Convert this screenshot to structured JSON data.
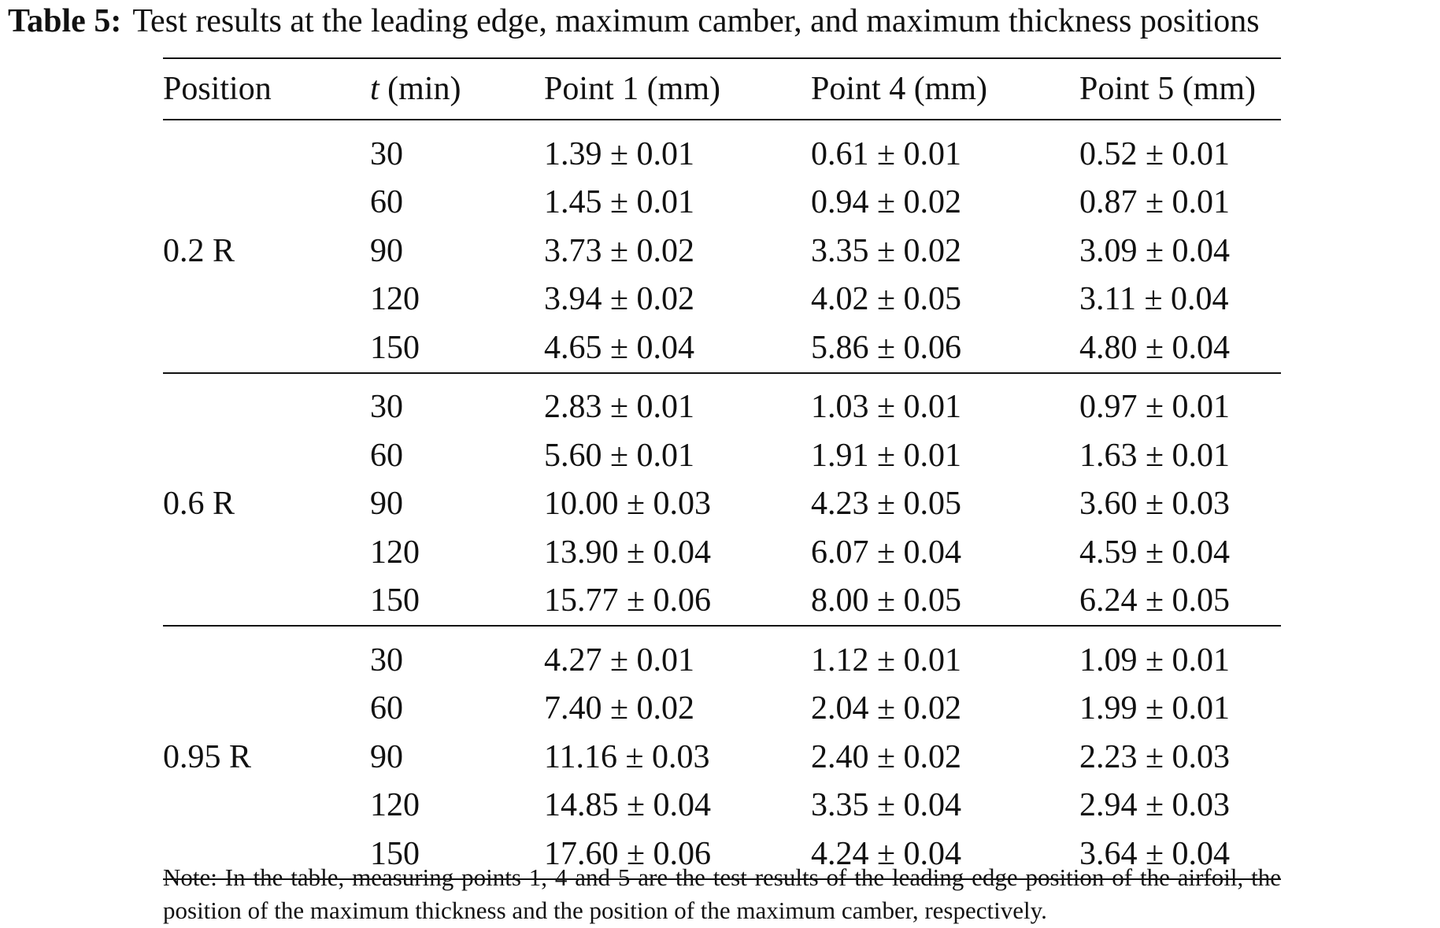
{
  "caption": {
    "label": "Table 5:",
    "text": "Test results at the leading edge, maximum camber, and maximum thickness positions"
  },
  "table": {
    "headers": {
      "position": "Position",
      "t_symbol": "t",
      "t_unit": "(min)",
      "point1": "Point 1 (mm)",
      "point4": "Point 4 (mm)",
      "point5": "Point 5 (mm)"
    },
    "groups": [
      {
        "position": "0.2 R",
        "rows": [
          {
            "t": "30",
            "p1": "1.39 ± 0.01",
            "p4": "0.61 ± 0.01",
            "p5": "0.52 ± 0.01"
          },
          {
            "t": "60",
            "p1": "1.45 ± 0.01",
            "p4": "0.94 ± 0.02",
            "p5": "0.87 ± 0.01"
          },
          {
            "t": "90",
            "p1": "3.73 ± 0.02",
            "p4": "3.35 ± 0.02",
            "p5": "3.09 ± 0.04"
          },
          {
            "t": "120",
            "p1": "3.94 ± 0.02",
            "p4": "4.02 ± 0.05",
            "p5": "3.11 ± 0.04"
          },
          {
            "t": "150",
            "p1": "4.65 ± 0.04",
            "p4": "5.86 ± 0.06",
            "p5": "4.80 ± 0.04"
          }
        ]
      },
      {
        "position": "0.6 R",
        "rows": [
          {
            "t": "30",
            "p1": "2.83 ± 0.01",
            "p4": "1.03 ± 0.01",
            "p5": "0.97 ± 0.01"
          },
          {
            "t": "60",
            "p1": "5.60 ± 0.01",
            "p4": "1.91 ± 0.01",
            "p5": "1.63 ± 0.01"
          },
          {
            "t": "90",
            "p1": "10.00 ± 0.03",
            "p4": "4.23 ± 0.05",
            "p5": "3.60 ± 0.03"
          },
          {
            "t": "120",
            "p1": "13.90 ± 0.04",
            "p4": "6.07 ± 0.04",
            "p5": "4.59 ± 0.04"
          },
          {
            "t": "150",
            "p1": "15.77 ± 0.06",
            "p4": "8.00 ± 0.05",
            "p5": "6.24 ± 0.05"
          }
        ]
      },
      {
        "position": "0.95 R",
        "rows": [
          {
            "t": "30",
            "p1": "4.27 ± 0.01",
            "p4": "1.12 ± 0.01",
            "p5": "1.09 ± 0.01"
          },
          {
            "t": "60",
            "p1": "7.40 ± 0.02",
            "p4": "2.04 ± 0.02",
            "p5": "1.99 ± 0.01"
          },
          {
            "t": "90",
            "p1": "11.16 ± 0.03",
            "p4": "2.40 ± 0.02",
            "p5": "2.23 ± 0.03"
          },
          {
            "t": "120",
            "p1": "14.85 ± 0.04",
            "p4": "3.35 ± 0.04",
            "p5": "2.94 ± 0.03"
          },
          {
            "t": "150",
            "p1": "17.60 ± 0.06",
            "p4": "4.24 ± 0.04",
            "p5": "3.64 ± 0.04"
          }
        ]
      }
    ]
  },
  "note": "Note: In the table, measuring points 1, 4 and 5 are the test results of the leading edge position of the airfoil, the position of the maximum thickness and the position of the maximum camber, respectively."
}
